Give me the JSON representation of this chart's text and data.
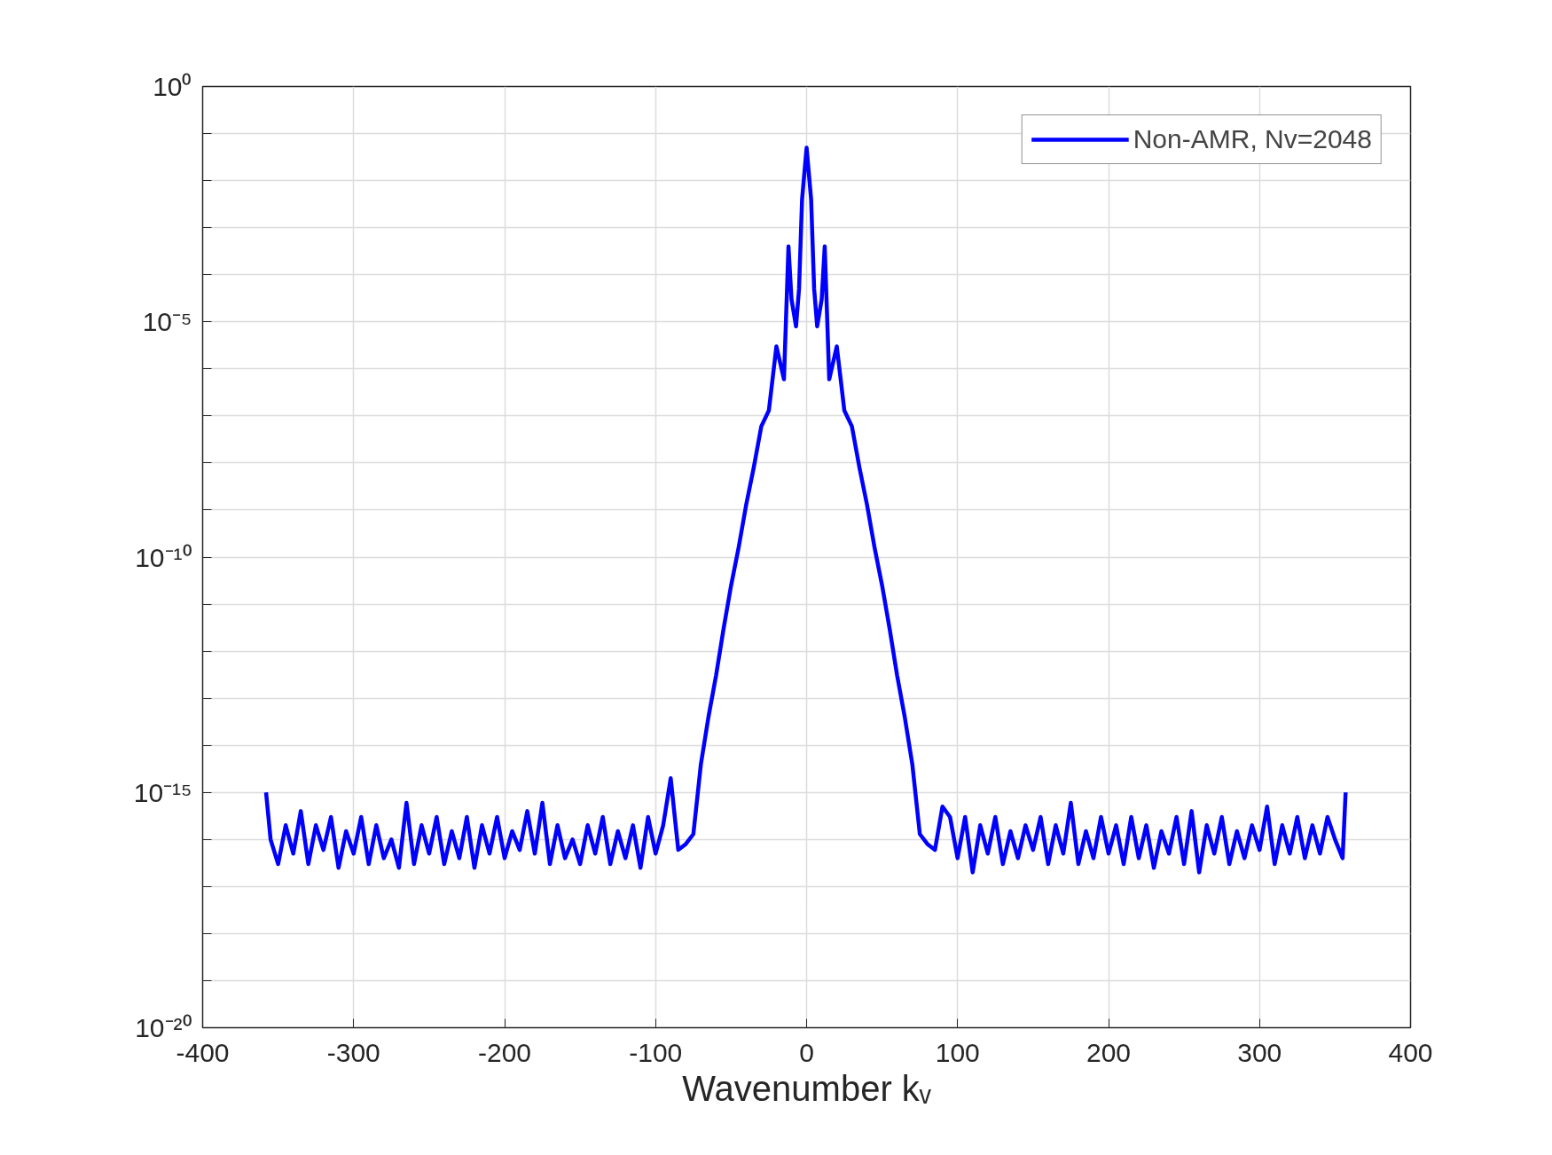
{
  "chart_data": {
    "type": "line",
    "xlabel": "Wavenumber kᵥ",
    "log": "y",
    "grid": true,
    "legend": "top right",
    "line_style": "solid",
    "marker": "none",
    "xlim": [
      -400,
      400
    ],
    "xticks": [
      -400,
      -300,
      -200,
      -100,
      0,
      100,
      200,
      300,
      400
    ],
    "ylim": [
      1e-20,
      1
    ],
    "yticks": [
      {
        "value": 1,
        "label": "10⁰"
      },
      {
        "value": 0.1,
        "label": null
      },
      {
        "value": 0.01,
        "label": null
      },
      {
        "value": 0.001,
        "label": null
      },
      {
        "value": 0.0001,
        "label": null
      },
      {
        "value": 1e-05,
        "label": "10⁻⁵"
      },
      {
        "value": 1e-06,
        "label": null
      },
      {
        "value": 1e-07,
        "label": null
      },
      {
        "value": 1e-08,
        "label": null
      },
      {
        "value": 1e-09,
        "label": null
      },
      {
        "value": 1e-10,
        "label": "10⁻¹⁰"
      },
      {
        "value": 1e-11,
        "label": null
      },
      {
        "value": 1e-12,
        "label": null
      },
      {
        "value": 1e-13,
        "label": null
      },
      {
        "value": 1e-14,
        "label": null
      },
      {
        "value": 1e-15,
        "label": "10⁻¹⁵"
      },
      {
        "value": 1e-16,
        "label": null
      },
      {
        "value": 1e-17,
        "label": null
      },
      {
        "value": 1e-18,
        "label": null
      },
      {
        "value": 1e-19,
        "label": null
      },
      {
        "value": 1e-20,
        "label": "10⁻²⁰"
      }
    ],
    "x": [
      -358,
      -355,
      -350,
      -345,
      -340,
      -335,
      -330,
      -325,
      -320,
      -315,
      -310,
      -305,
      -300,
      -295,
      -290,
      -285,
      -280,
      -275,
      -270,
      -265,
      -260,
      -255,
      -250,
      -245,
      -240,
      -235,
      -230,
      -225,
      -220,
      -215,
      -210,
      -205,
      -200,
      -195,
      -190,
      -185,
      -180,
      -175,
      -170,
      -165,
      -160,
      -155,
      -150,
      -145,
      -140,
      -135,
      -130,
      -125,
      -120,
      -115,
      -110,
      -105,
      -100,
      -95,
      -90,
      -85,
      -80,
      -75,
      -70,
      -65,
      -60,
      -55,
      -50,
      -45,
      -40,
      -35,
      -30,
      -25,
      -20,
      -15,
      -12,
      -10,
      -7,
      -5,
      -3,
      0,
      3,
      5,
      7,
      10,
      12,
      15,
      20,
      25,
      30,
      35,
      40,
      45,
      50,
      55,
      60,
      65,
      70,
      75,
      80,
      85,
      90,
      95,
      100,
      105,
      110,
      115,
      120,
      125,
      130,
      135,
      140,
      145,
      150,
      155,
      160,
      165,
      170,
      175,
      180,
      185,
      190,
      195,
      200,
      205,
      210,
      215,
      220,
      225,
      230,
      235,
      240,
      245,
      250,
      255,
      260,
      265,
      270,
      275,
      280,
      285,
      290,
      295,
      300,
      305,
      310,
      315,
      320,
      325,
      330,
      335,
      340,
      345,
      350,
      355,
      357
    ],
    "series": [
      {
        "name": "Non-AMR, Nv=2048",
        "color": "#0000ff",
        "values": [
          1e-15,
          1e-16,
          3e-17,
          2e-16,
          5e-17,
          4e-16,
          3e-17,
          2e-16,
          6e-17,
          3e-16,
          2.5e-17,
          1.5e-16,
          5e-17,
          3e-16,
          3e-17,
          2e-16,
          4e-17,
          1e-16,
          2.5e-17,
          6e-16,
          3e-17,
          2e-16,
          5e-17,
          3e-16,
          3e-17,
          1.5e-16,
          4e-17,
          3e-16,
          2.5e-17,
          2e-16,
          5e-17,
          3e-16,
          4e-17,
          1.5e-16,
          6e-17,
          4e-16,
          5e-17,
          6e-16,
          3e-17,
          2e-16,
          4e-17,
          1e-16,
          3e-17,
          2e-16,
          5e-17,
          3e-16,
          3e-17,
          1.5e-16,
          4e-17,
          2e-16,
          2.5e-17,
          3e-16,
          5e-17,
          2e-16,
          2e-15,
          6e-17,
          8e-17,
          1.3e-16,
          4e-15,
          4e-14,
          3e-13,
          3e-12,
          2.5e-11,
          1.6e-10,
          1.3e-09,
          8e-09,
          6e-08,
          1.3e-07,
          3e-06,
          6e-07,
          0.0004,
          3e-05,
          8e-06,
          5e-05,
          0.004,
          0.05,
          0.004,
          5e-05,
          8e-06,
          3e-05,
          0.0004,
          6e-07,
          3e-06,
          1.3e-07,
          6e-08,
          8e-09,
          1.3e-09,
          1.6e-10,
          2.5e-11,
          3e-12,
          3e-13,
          4e-14,
          4e-15,
          1.3e-16,
          8e-17,
          6e-17,
          5e-16,
          3e-16,
          4e-17,
          3e-16,
          2e-17,
          2e-16,
          5e-17,
          3e-16,
          3e-17,
          1.5e-16,
          4e-17,
          2e-16,
          6e-17,
          3e-16,
          3e-17,
          2e-16,
          5e-17,
          6e-16,
          3e-17,
          1.5e-16,
          4e-17,
          3e-16,
          5e-17,
          2e-16,
          3e-17,
          3e-16,
          4e-17,
          2e-16,
          2.5e-17,
          1.5e-16,
          5e-17,
          3e-16,
          3e-17,
          4e-16,
          2e-17,
          2e-16,
          5e-17,
          3e-16,
          3e-17,
          1.5e-16,
          4e-17,
          2e-16,
          6e-17,
          5e-16,
          3e-17,
          2e-16,
          5e-17,
          3e-16,
          4e-17,
          2e-16,
          5e-17,
          3e-16,
          1e-16,
          4e-17,
          1e-15
        ]
      }
    ]
  }
}
